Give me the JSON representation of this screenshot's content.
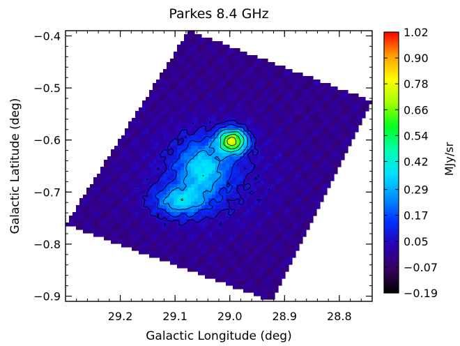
{
  "chart_data": {
    "type": "heatmap",
    "title": "Parkes 8.4 GHz",
    "xlabel": "Galactic Longitude (deg)",
    "ylabel": "Galactic Latitude (deg)",
    "xlim": [
      29.3,
      28.74
    ],
    "ylim": [
      -0.91,
      -0.39
    ],
    "x_ticks": [
      {
        "value": 29.2,
        "label": "29.2"
      },
      {
        "value": 29.1,
        "label": "29.1"
      },
      {
        "value": 29.0,
        "label": "29.0"
      },
      {
        "value": 28.9,
        "label": "28.9"
      },
      {
        "value": 28.8,
        "label": "28.8"
      }
    ],
    "y_ticks": [
      {
        "value": -0.4,
        "label": "−0.4"
      },
      {
        "value": -0.5,
        "label": "−0.5"
      },
      {
        "value": -0.6,
        "label": "−0.6"
      },
      {
        "value": -0.7,
        "label": "−0.7"
      },
      {
        "value": -0.8,
        "label": "−0.8"
      },
      {
        "value": -0.9,
        "label": "−0.9"
      }
    ],
    "colorbar": {
      "label": "MJy/sr",
      "range": [
        -0.19,
        1.02
      ],
      "ticks": [
        "1.02",
        "0.90",
        "0.78",
        "0.66",
        "0.54",
        "0.42",
        "0.29",
        "0.17",
        "0.05",
        "−0.07",
        "−0.19"
      ],
      "tick_values": [
        1.02,
        0.9,
        0.78,
        0.66,
        0.54,
        0.42,
        0.29,
        0.17,
        0.05,
        -0.07,
        -0.19
      ],
      "colors": [
        "#000000",
        "#3a0060",
        "#2a00b0",
        "#0030ff",
        "#0090ff",
        "#00e0ff",
        "#00ffb0",
        "#00ff20",
        "#a0ff00",
        "#ffff00",
        "#ffa000",
        "#ff0000"
      ]
    },
    "background_level": -0.02,
    "map_corners": [
      {
        "l": 29.075,
        "b": -0.39
      },
      {
        "l": 28.74,
        "b": -0.525
      },
      {
        "l": 28.922,
        "b": -0.91
      },
      {
        "l": 29.3,
        "b": -0.762
      }
    ],
    "sources": [
      {
        "name": "peak",
        "l": 28.995,
        "b": -0.602,
        "amplitude": 0.72,
        "sigma_l": 0.018,
        "sigma_b": 0.016
      },
      {
        "name": "secondary",
        "l": 29.092,
        "b": -0.718,
        "amplitude": 0.3,
        "sigma_l": 0.032,
        "sigma_b": 0.02
      },
      {
        "name": "middle",
        "l": 29.05,
        "b": -0.655,
        "amplitude": 0.28,
        "sigma_l": 0.03,
        "sigma_b": 0.035
      },
      {
        "name": "envelope",
        "l": 29.04,
        "b": -0.665,
        "amplitude": 0.12,
        "sigma_l": 0.075,
        "sigma_b": 0.065
      }
    ],
    "contour_levels": [
      0.06,
      0.14,
      0.26,
      0.4,
      0.55,
      0.7,
      0.82
    ]
  }
}
